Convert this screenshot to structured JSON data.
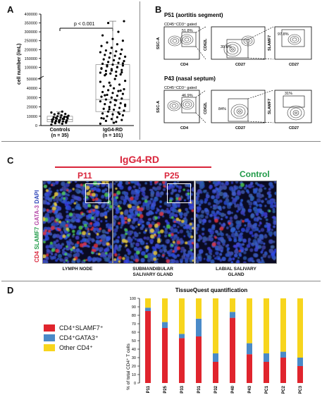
{
  "panels": {
    "a": {
      "letter": "A",
      "ylabel": "cell number (/mL)",
      "yticks": [
        "0",
        "10000",
        "20000",
        "30000",
        "40000",
        "50000",
        "100000",
        "150000",
        "200000",
        "250000",
        "300000",
        "350000",
        "400000"
      ],
      "pvalue": "p < 0.001",
      "groups": [
        {
          "name": "Controls",
          "n": "(n = 35)"
        },
        {
          "name": "IgG4-RD",
          "n": "(n = 101)"
        }
      ]
    },
    "b": {
      "letter": "B",
      "rows": [
        {
          "title": "P51 (aortitis segment)",
          "gate_label": "CD45⁺CD3⁺ gated",
          "plot1": {
            "y": "SSC-A",
            "x": "CD4",
            "pct": "51.8%"
          },
          "plot2": {
            "y": "CD62L",
            "x": "CD27",
            "pct": "39.6%"
          },
          "plot3": {
            "y": "SLAMF7",
            "x": "CD27",
            "pct": "97.8%"
          }
        },
        {
          "title": "P43 (nasal septum)",
          "gate_label": "CD45⁺CD3⁺ gated",
          "plot1": {
            "y": "SSC-A",
            "x": "CD4",
            "pct": "46.9%"
          },
          "plot2": {
            "y": "CD62L",
            "x": "CD27",
            "pct": "84%"
          },
          "plot3": {
            "y": "SLAMF7",
            "x": "CD27",
            "pct": "31%"
          }
        }
      ]
    },
    "c": {
      "letter": "C",
      "group_title": "IgG4-RD",
      "side_label": {
        "cd4": "CD4",
        "slamf7": "SLAMF7",
        "gata3": "GATA-3",
        "dapi": "DAPI"
      },
      "images": [
        {
          "title": "P11",
          "caption": "LYMPH NODE"
        },
        {
          "title": "P25",
          "caption": "SUBMANDIBULAR SALIVARY GLAND"
        },
        {
          "title": "Control",
          "caption": "LABIAL SALIVARY GLAND"
        }
      ],
      "colors": {
        "igg4": "#d9253b",
        "control": "#1f9a47"
      }
    },
    "d": {
      "letter": "D",
      "legend": [
        {
          "label": "CD4⁺SLAMF7⁺",
          "color": "#e0242d"
        },
        {
          "label": "CD4⁺GATA3⁺",
          "color": "#4a8ac8"
        },
        {
          "label": "Other CD4⁺",
          "color": "#f7d51d"
        }
      ]
    }
  },
  "chart_data": [
    {
      "type": "scatter",
      "ylabel": "cell number (/mL)",
      "categories": [
        "Controls",
        "IgG4-RD"
      ],
      "note": "dot plot with box and whiskers; broken y axis",
      "series": [
        {
          "name": "Controls",
          "values": [
            1000,
            2000,
            2500,
            3000,
            3500,
            4000,
            4500,
            5000,
            5500,
            6000,
            6500,
            7000,
            7500,
            8000,
            8500,
            9000,
            9500,
            10000,
            10500,
            11000,
            12000,
            12500,
            13000,
            14000,
            15000,
            3200,
            4200,
            5200,
            6200,
            7200,
            8200,
            9200,
            5800,
            6800,
            7800
          ]
        },
        {
          "name": "IgG4-RD",
          "values": [
            2000,
            4000,
            5000,
            6000,
            7000,
            8000,
            9000,
            10000,
            11000,
            12000,
            13000,
            14000,
            15000,
            16000,
            17000,
            18000,
            19000,
            20000,
            21000,
            22000,
            23000,
            24000,
            25000,
            26000,
            27000,
            28000,
            29000,
            30000,
            31000,
            32000,
            33000,
            34000,
            35000,
            36000,
            37000,
            38000,
            39000,
            40000,
            42000,
            44000,
            46000,
            48000,
            50000,
            55000,
            60000,
            65000,
            70000,
            75000,
            80000,
            85000,
            90000,
            95000,
            100000,
            105000,
            110000,
            115000,
            120000,
            125000,
            130000,
            135000,
            140000,
            145000,
            150000,
            155000,
            160000,
            165000,
            170000,
            175000,
            180000,
            185000,
            190000,
            195000,
            200000,
            210000,
            220000,
            230000,
            240000,
            250000,
            260000,
            280000,
            300000,
            350000,
            360000,
            3000,
            7500,
            12500,
            17500,
            22500,
            27500,
            32500,
            37500,
            43000,
            47000,
            52000,
            62000,
            72000,
            82000,
            92000,
            102000,
            112000,
            122000
          ]
        }
      ],
      "box": {
        "Controls": {
          "min": 1000,
          "q1": 4000,
          "median": 6500,
          "q3": 10000,
          "max": 15000
        },
        "IgG4-RD": {
          "min": 2000,
          "q1": 15000,
          "median": 28000,
          "q3": 115000,
          "max": 360000
        }
      }
    },
    {
      "type": "bar",
      "title": "TissueQuest quantification",
      "ylabel": "% of total CD4⁺ T cells",
      "categories": [
        "P11",
        "P25",
        "P33",
        "P31",
        "P32",
        "P40",
        "P43",
        "PC1",
        "PC2",
        "PC3"
      ],
      "starred": [
        true,
        true,
        false,
        true,
        false,
        false,
        true,
        false,
        false,
        false
      ],
      "ylim": [
        0,
        100
      ],
      "yticks": [
        0,
        10,
        20,
        30,
        40,
        50,
        60,
        70,
        80,
        90,
        100
      ],
      "stacked": true,
      "series": [
        {
          "name": "CD4⁺SLAMF7⁺",
          "values": [
            85,
            65,
            53,
            55,
            25,
            77,
            34,
            25,
            30,
            20
          ]
        },
        {
          "name": "CD4⁺GATA3⁺",
          "values": [
            4,
            7,
            5,
            21,
            10,
            7,
            13,
            10,
            7,
            10
          ]
        },
        {
          "name": "Other CD4⁺",
          "values": [
            11,
            28,
            42,
            24,
            65,
            16,
            53,
            65,
            63,
            70
          ]
        }
      ]
    }
  ]
}
